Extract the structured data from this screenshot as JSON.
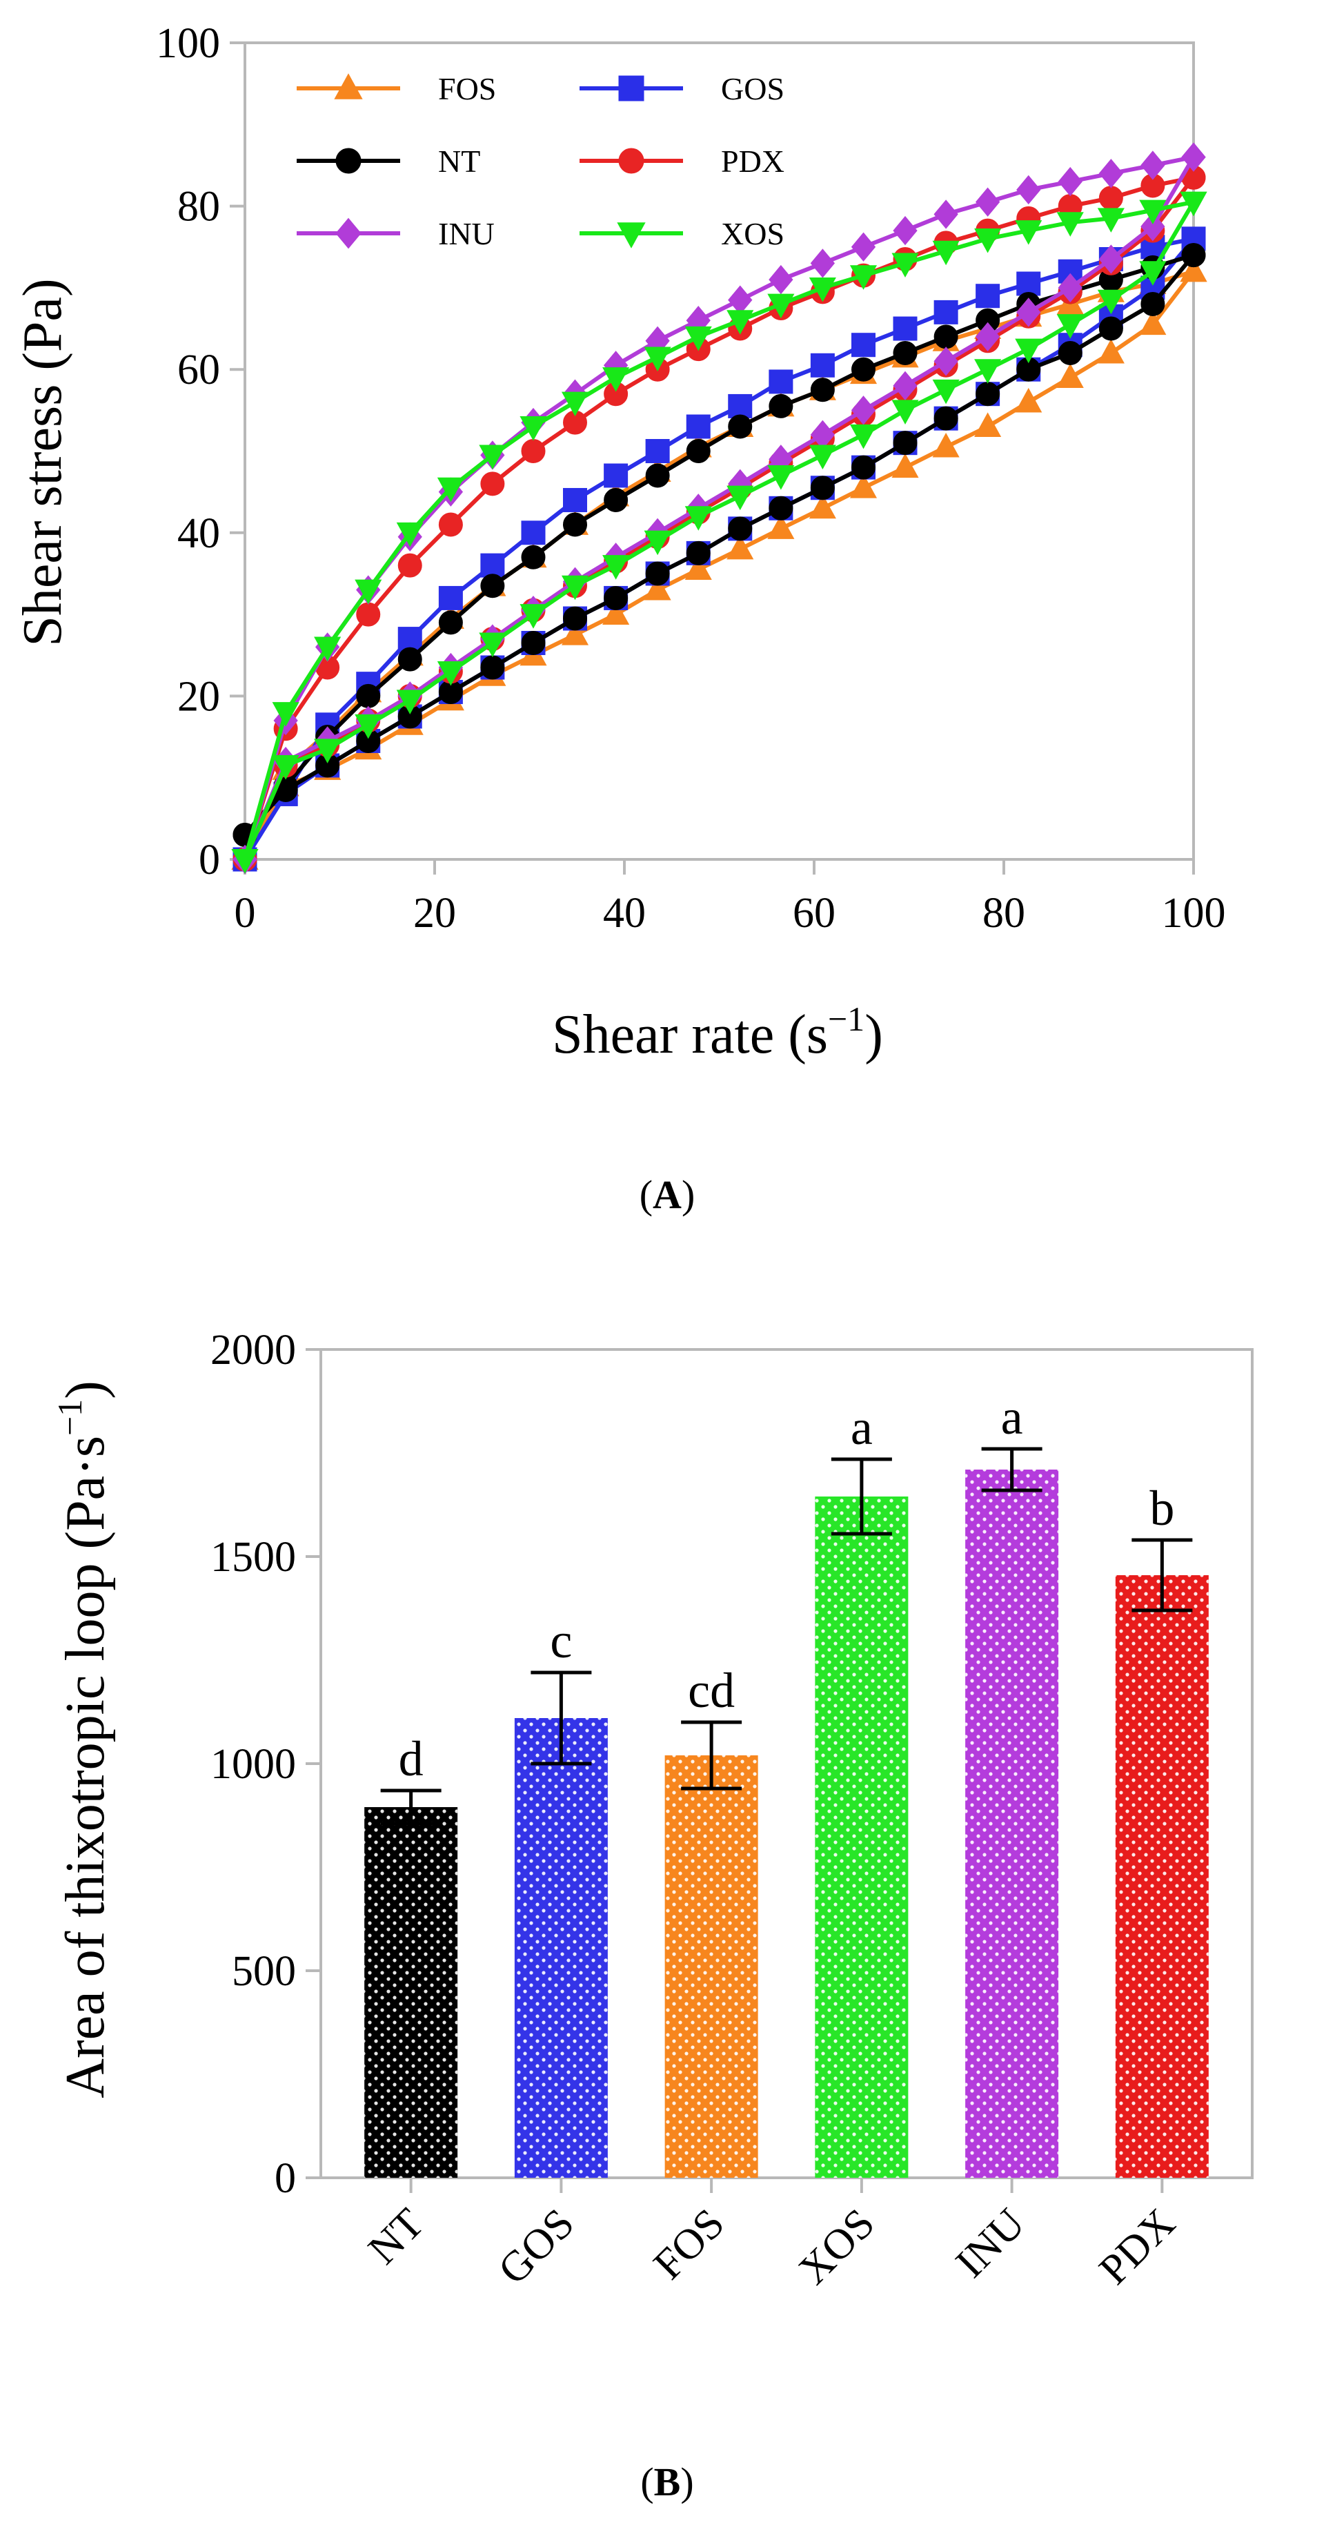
{
  "figure": {
    "panel_a_label": {
      "open": "(",
      "letter": "A",
      "close": ")"
    },
    "panel_b_label": {
      "open": "(",
      "letter": "B",
      "close": ")"
    }
  },
  "chart_data": [
    {
      "type": "line",
      "panel": "A",
      "title": "",
      "xlabel": "Shear rate (s",
      "xlabel_superscript": "−1",
      "xlabel_suffix": ")",
      "ylabel": "Shear stress (Pa)",
      "xlim": [
        0,
        100
      ],
      "ylim": [
        0,
        100
      ],
      "xticks": [
        "0",
        "20",
        "40",
        "60",
        "80",
        "100"
      ],
      "yticks": [
        "0",
        "20",
        "40",
        "60",
        "80",
        "100"
      ],
      "legend_position": "top-left",
      "x": [
        0,
        4.3,
        8.7,
        13,
        17.4,
        21.7,
        26.1,
        30.4,
        34.8,
        39.1,
        43.5,
        47.8,
        52.2,
        56.5,
        60.9,
        65.2,
        69.6,
        73.9,
        78.3,
        82.6,
        87,
        91.3,
        95.7,
        100
      ],
      "series": [
        {
          "name": "FOS",
          "color": "#f7861e",
          "marker": "triangle-up",
          "up": [
            0,
            11,
            15.5,
            20.5,
            25,
            29.5,
            33.5,
            37,
            41,
            44.5,
            47.5,
            50.5,
            53,
            55.5,
            57.5,
            59.5,
            61.5,
            63.5,
            65,
            66.5,
            68,
            69.5,
            70.5,
            72
          ],
          "down": [
            0,
            9,
            11,
            13.5,
            16.5,
            19.5,
            22.5,
            25,
            27.5,
            30,
            33,
            35.5,
            38,
            40.5,
            43,
            45.5,
            48,
            50.5,
            53,
            56,
            59,
            62,
            65.5,
            72
          ]
        },
        {
          "name": "GOS",
          "color": "#2a2fe8",
          "marker": "square",
          "up": [
            0,
            8,
            16.5,
            21.5,
            27,
            32,
            36,
            40,
            44,
            47,
            50,
            53,
            55.5,
            58.5,
            60.5,
            63,
            65,
            67,
            69,
            70.5,
            72,
            73.5,
            75,
            76
          ],
          "down": [
            0,
            8,
            11.5,
            14.5,
            17.5,
            20.5,
            23.5,
            26.5,
            29.5,
            32,
            35,
            37.5,
            40.5,
            43,
            45.5,
            48,
            51,
            54,
            57,
            60,
            63,
            66.5,
            70,
            76
          ]
        },
        {
          "name": "NT",
          "color": "#000000",
          "marker": "circle",
          "up": [
            3,
            9,
            15,
            20,
            24.5,
            29,
            33.5,
            37,
            41,
            44,
            47,
            50,
            53,
            55.5,
            57.5,
            60,
            62,
            64,
            66,
            68,
            69.5,
            71,
            72.5,
            74
          ],
          "down": [
            3,
            8.5,
            11.5,
            14.5,
            17.5,
            20.5,
            23.5,
            26.5,
            29.5,
            32,
            35,
            37.5,
            40.5,
            43,
            45.5,
            48,
            51,
            54,
            57,
            60,
            62,
            65,
            68,
            74
          ]
        },
        {
          "name": "PDX",
          "color": "#e82424",
          "marker": "circle",
          "up": [
            0,
            16,
            23.5,
            30,
            36,
            41,
            46,
            50,
            53.5,
            57,
            60,
            62.5,
            65,
            67.5,
            69.5,
            71.5,
            73.5,
            75.5,
            77,
            78.5,
            80,
            81,
            82.5,
            83.5
          ],
          "down": [
            0,
            11.5,
            14,
            17,
            20,
            23,
            27,
            30.5,
            33.5,
            36.5,
            39.5,
            42.5,
            45.5,
            48.5,
            51.5,
            54.5,
            57.5,
            60.5,
            63.5,
            66.5,
            69.5,
            73,
            77,
            83.5
          ]
        },
        {
          "name": "INU",
          "color": "#b13cd8",
          "marker": "diamond",
          "up": [
            0,
            17,
            26,
            33,
            39.5,
            45,
            49.5,
            53.5,
            57,
            60.5,
            63.5,
            66,
            68.5,
            71,
            73,
            75,
            77,
            79,
            80.5,
            82,
            83,
            84,
            85,
            86
          ],
          "down": [
            0,
            12,
            14.5,
            17,
            20,
            23.5,
            27,
            30.5,
            34,
            37,
            40,
            43,
            46,
            49,
            52,
            55,
            58,
            61,
            64,
            67,
            70,
            73.5,
            77.5,
            86
          ]
        },
        {
          "name": "XOS",
          "color": "#18e818",
          "marker": "triangle-down",
          "up": [
            0,
            18,
            26,
            33,
            40,
            45.5,
            49.5,
            53,
            56,
            59,
            61.5,
            64,
            66,
            68,
            70,
            71.5,
            73,
            74.5,
            76,
            77,
            78,
            78.5,
            79.5,
            80.5
          ],
          "down": [
            0,
            11.5,
            13.5,
            16.5,
            19.5,
            23,
            26.5,
            30,
            33.5,
            36,
            39,
            42,
            44.5,
            47,
            49.5,
            52,
            55,
            57.5,
            60,
            62.5,
            65.5,
            68.5,
            72,
            80.5
          ]
        }
      ]
    },
    {
      "type": "bar",
      "panel": "B",
      "title": "",
      "xlabel": "",
      "ylabel": "Area of thixotropic loop (Pa·s",
      "ylabel_superscript": "−1",
      "ylabel_suffix": ")",
      "ylim": [
        0,
        2000
      ],
      "yticks": [
        "0",
        "500",
        "1000",
        "1500",
        "2000"
      ],
      "categories": [
        "NT",
        "GOS",
        "FOS",
        "XOS",
        "INU",
        "PDX"
      ],
      "values": [
        895,
        1110,
        1020,
        1645,
        1710,
        1455
      ],
      "errors": [
        40,
        110,
        80,
        90,
        50,
        85
      ],
      "letters": [
        "d",
        "c",
        "cd",
        "a",
        "a",
        "b"
      ],
      "colors": [
        "#000000",
        "#3434e8",
        "#f7861e",
        "#28e628",
        "#b43cdc",
        "#e81c1c"
      ],
      "pattern": "dotted"
    }
  ]
}
